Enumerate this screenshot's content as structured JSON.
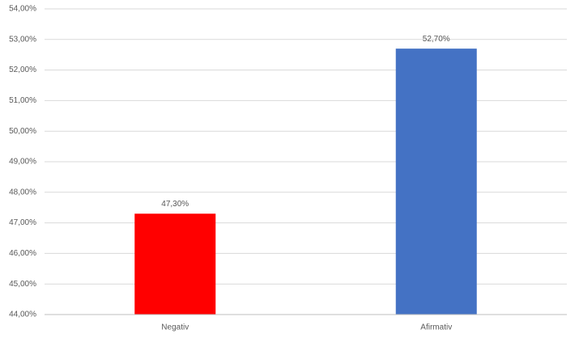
{
  "chart_data": {
    "type": "bar",
    "categories": [
      "Negativ",
      "Afirmativ"
    ],
    "values": [
      47.3,
      52.7
    ],
    "value_labels": [
      "47,30%",
      "52,70%"
    ],
    "colors": [
      "#ff0000",
      "#4472c4"
    ],
    "ylim": [
      44,
      54
    ],
    "yticks": [
      {
        "value": 44,
        "label": "44,00%"
      },
      {
        "value": 45,
        "label": "45,00%"
      },
      {
        "value": 46,
        "label": "46,00%"
      },
      {
        "value": 47,
        "label": "47,00%"
      },
      {
        "value": 48,
        "label": "48,00%"
      },
      {
        "value": 49,
        "label": "49,00%"
      },
      {
        "value": 50,
        "label": "50,00%"
      },
      {
        "value": 51,
        "label": "51,00%"
      },
      {
        "value": 52,
        "label": "52,00%"
      },
      {
        "value": 53,
        "label": "53,00%"
      },
      {
        "value": 54,
        "label": "54,00%"
      }
    ],
    "grid": true
  }
}
